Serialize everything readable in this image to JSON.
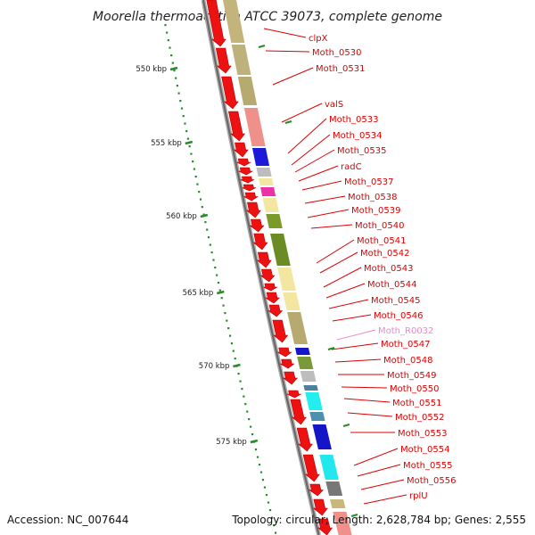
{
  "title": "Moorella thermoacetica ATCC 39073, complete genome",
  "footer": {
    "accession": "Accession: NC_007644",
    "summary": "Topology: circular; Length: 2,628,784 bp; Genes: 2,555"
  },
  "colors": {
    "cds_arrow": "#ee1111",
    "label_red": "#dd0000",
    "label_rna": "#ee88cc",
    "backbone": "#888888",
    "scale": "#2a8a2a"
  },
  "scale_marks": [
    {
      "label": "550 kbp"
    },
    {
      "label": "555 kbp"
    },
    {
      "label": "560 kbp"
    },
    {
      "label": "565 kbp"
    },
    {
      "label": "570 kbp"
    },
    {
      "label": "575 kbp"
    }
  ],
  "genes": [
    {
      "label": "clpX",
      "type": "CDS"
    },
    {
      "label": "Moth_0530",
      "type": "CDS"
    },
    {
      "label": "Moth_0531",
      "type": "CDS"
    },
    {
      "label": "valS",
      "type": "CDS"
    },
    {
      "label": "Moth_0533",
      "type": "CDS"
    },
    {
      "label": "Moth_0534",
      "type": "CDS"
    },
    {
      "label": "Moth_0535",
      "type": "CDS"
    },
    {
      "label": "radC",
      "type": "CDS"
    },
    {
      "label": "Moth_0537",
      "type": "CDS"
    },
    {
      "label": "Moth_0538",
      "type": "CDS"
    },
    {
      "label": "Moth_0539",
      "type": "CDS"
    },
    {
      "label": "Moth_0540",
      "type": "CDS"
    },
    {
      "label": "Moth_0541",
      "type": "CDS"
    },
    {
      "label": "Moth_0542",
      "type": "CDS"
    },
    {
      "label": "Moth_0543",
      "type": "CDS"
    },
    {
      "label": "Moth_0544",
      "type": "CDS"
    },
    {
      "label": "Moth_0545",
      "type": "CDS"
    },
    {
      "label": "Moth_0546",
      "type": "CDS"
    },
    {
      "label": "Moth_R0032",
      "type": "RNA"
    },
    {
      "label": "Moth_0547",
      "type": "CDS"
    },
    {
      "label": "Moth_0548",
      "type": "CDS"
    },
    {
      "label": "Moth_0549",
      "type": "CDS"
    },
    {
      "label": "Moth_0550",
      "type": "CDS"
    },
    {
      "label": "Moth_0551",
      "type": "CDS"
    },
    {
      "label": "Moth_0552",
      "type": "CDS"
    },
    {
      "label": "Moth_0553",
      "type": "CDS"
    },
    {
      "label": "Moth_0554",
      "type": "CDS"
    },
    {
      "label": "Moth_0555",
      "type": "CDS"
    },
    {
      "label": "Moth_0556",
      "type": "CDS"
    },
    {
      "label": "rplU",
      "type": "CDS"
    }
  ]
}
